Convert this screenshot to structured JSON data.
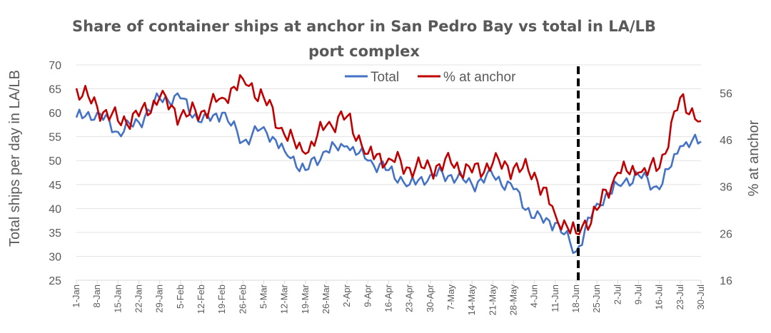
{
  "chart_data": {
    "type": "line",
    "title_line1": "Share of container ships at anchor in San Pedro Bay vs total in LA/LB",
    "title_line2": "port complex",
    "ylabel_left": "Total ships per day in LA/LB",
    "ylabel_right": "% at anchor",
    "ylim_left": [
      25,
      70
    ],
    "yticks_left": [
      "25",
      "30",
      "35",
      "40",
      "45",
      "50",
      "55",
      "60",
      "65",
      "70"
    ],
    "ylim_right": [
      16,
      62
    ],
    "yticks_right": [
      "16",
      "26",
      "36",
      "46",
      "56"
    ],
    "x_tick_labels": [
      "1-Jan",
      "8-Jan",
      "15-Jan",
      "22-Jan",
      "29-Jan",
      "5-Feb",
      "12-Feb",
      "19-Feb",
      "26-Feb",
      "5-Mar",
      "12-Mar",
      "19-Mar",
      "26-Mar",
      "2-Apr",
      "9-Apr",
      "16-Apr",
      "23-Apr",
      "30-Apr",
      "7-May",
      "14-May",
      "21-May",
      "28-May",
      "4-Jun",
      "11-Jun",
      "18-Jun",
      "25-Jun",
      "2-Jul",
      "9-Jul",
      "16-Jul",
      "23-Jul",
      "30-Jul"
    ],
    "grid": true,
    "legend_position": "top-center",
    "marker_date": "18-Jun",
    "series": [
      {
        "name": "Total",
        "axis": "left",
        "color": "#4472C4",
        "weekly_values": [
          59,
          60,
          56,
          58,
          63,
          63,
          58,
          60,
          54,
          57,
          52,
          48,
          52,
          53,
          50,
          48,
          45,
          47,
          47,
          45,
          47,
          44,
          38,
          37,
          31,
          41,
          45,
          47,
          44,
          53,
          54
        ]
      },
      {
        "name": "% at anchor",
        "axis": "right",
        "color": "#C00000",
        "weekly_values": [
          57,
          53,
          50,
          51,
          55,
          51,
          52,
          55,
          59,
          55,
          47,
          43,
          49,
          51,
          43,
          42,
          40,
          40,
          41,
          39,
          41,
          40,
          39,
          30,
          26,
          31,
          39,
          39,
          40,
          55,
          50
        ]
      }
    ]
  }
}
